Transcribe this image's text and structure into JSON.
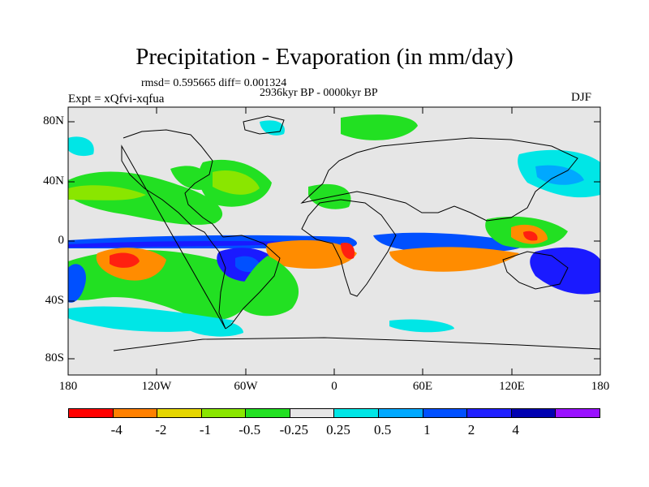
{
  "title": "Precipitation - Evaporation (in mm/day)",
  "stats": "rmsd= 0.595665 diff= 0.001324",
  "period": "2936kyr BP - 0000kyr BP",
  "expt": "Expt = xQfvi-xqfua",
  "season": "DJF",
  "lat_ticks": [
    "80N",
    "40N",
    "0",
    "40S",
    "80S"
  ],
  "lon_ticks": [
    "180",
    "120W",
    "60W",
    "0",
    "60E",
    "120E",
    "180"
  ],
  "colorbar": {
    "colors": [
      "#ff0000",
      "#ff8000",
      "#e6d600",
      "#8ae600",
      "#22e022",
      "#e6e6e6",
      "#00e6e6",
      "#00a8ff",
      "#0050ff",
      "#2020ff",
      "#0000b0",
      "#9a10ff"
    ],
    "labels": [
      "-4",
      "-2",
      "-1",
      "-0.5",
      "-0.25",
      "0.25",
      "0.5",
      "1",
      "2",
      "4"
    ]
  },
  "field_colors": {
    "background": "#e6e6e6",
    "red": "#ff2010",
    "orange": "#ff8c00",
    "yellow": "#e6d600",
    "lightgreen": "#8ae600",
    "green": "#22e022",
    "cyan": "#00e6e6",
    "lightblue": "#00a8ff",
    "blue": "#0050ff",
    "darkblue": "#1a1aff"
  }
}
